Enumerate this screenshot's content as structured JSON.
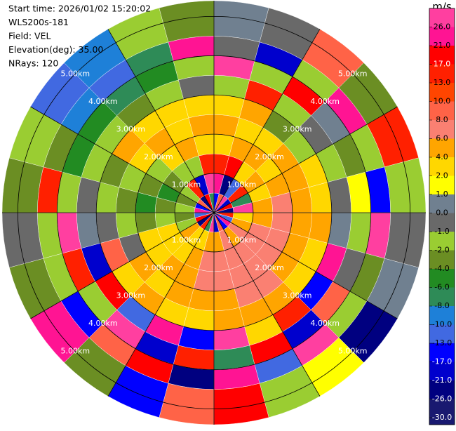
{
  "chart_data": {
    "type": "ppi",
    "info": [
      "Start time: 2026/01/02 15:20:02",
      "WLS200s-181",
      "Field: VEL",
      "Elevation(deg): 35.00",
      "NRays: 120"
    ],
    "colorbar_title": "m/s",
    "colorbar_ticks": [
      {
        "value": -30,
        "label": "-30.0"
      },
      {
        "value": -26,
        "label": "-26.0"
      },
      {
        "value": -21,
        "label": "-21.0"
      },
      {
        "value": -17,
        "label": "-17.0"
      },
      {
        "value": -13,
        "label": "-13.0"
      },
      {
        "value": -10,
        "label": "-10.0"
      },
      {
        "value": -8,
        "label": "-8.0"
      },
      {
        "value": -6,
        "label": "-6.0"
      },
      {
        "value": -4,
        "label": "-4.0"
      },
      {
        "value": -2,
        "label": "-2.0"
      },
      {
        "value": -1,
        "label": "-1.0"
      },
      {
        "value": 0,
        "label": "0.0"
      },
      {
        "value": 1,
        "label": "1.0"
      },
      {
        "value": 2,
        "label": "2.0"
      },
      {
        "value": 4,
        "label": "4.0"
      },
      {
        "value": 6,
        "label": "6.0"
      },
      {
        "value": 8,
        "label": "8.0"
      },
      {
        "value": 10,
        "label": "10.0"
      },
      {
        "value": 13,
        "label": "13.0"
      },
      {
        "value": 17,
        "label": "17.0"
      },
      {
        "value": 21,
        "label": "21.0"
      },
      {
        "value": 26,
        "label": "26.0"
      }
    ],
    "colors": [
      "#191970",
      "#000080",
      "#0000cd",
      "#0000ff",
      "#4169e1",
      "#1e80d8",
      "#2e8b57",
      "#228b22",
      "#6b8e23",
      "#9acd32",
      "#696969",
      "#708090",
      "#ffff00",
      "#ffd700",
      "#ffa500",
      "#fa8072",
      "#ff6347",
      "#ff4500",
      "#ff2000",
      "#ff0000",
      "#ff1493",
      "#ff3fa0"
    ],
    "rlim": [
      0,
      5.4
    ],
    "rticks": [
      {
        "value": 1,
        "label": "1.00km"
      },
      {
        "value": 2,
        "label": "2.00km"
      },
      {
        "value": 3,
        "label": "3.00km"
      },
      {
        "value": 4,
        "label": "4.00km"
      },
      {
        "value": 5,
        "label": "5.00km"
      }
    ],
    "azimuths": [
      0,
      15,
      30,
      45,
      60,
      75,
      90,
      105,
      120,
      135,
      150,
      165,
      180,
      195,
      210,
      225,
      240,
      255,
      270,
      285,
      300,
      315,
      330,
      345
    ],
    "ranges": [
      0,
      0.5,
      1,
      1.5,
      2,
      2.5,
      3,
      3.5,
      4,
      4.5
    ],
    "values": [
      [
        -17,
        21,
        13,
        2,
        4,
        2,
        -2,
        26,
        -1,
        0
      ],
      [
        8,
        -26,
        17,
        4,
        2,
        4,
        13,
        -2,
        -21,
        -1
      ],
      [
        26,
        -13,
        2,
        4,
        2,
        -4,
        -2,
        17,
        -2,
        8
      ],
      [
        -21,
        13,
        4,
        2,
        4,
        -2,
        -1,
        0,
        21,
        -4
      ],
      [
        17,
        -8,
        2,
        4,
        4,
        2,
        -2,
        -4,
        -2,
        13
      ],
      [
        -26,
        26,
        4,
        6,
        4,
        2,
        -1,
        1,
        -17,
        -2
      ],
      [
        13,
        2,
        4,
        6,
        4,
        4,
        0,
        -2,
        26,
        -1
      ],
      [
        -13,
        4,
        6,
        6,
        4,
        2,
        21,
        -1,
        -4,
        0
      ],
      [
        21,
        6,
        6,
        6,
        4,
        2,
        -17,
        8,
        -2,
        -26
      ],
      [
        -17,
        4,
        6,
        6,
        6,
        4,
        13,
        -21,
        26,
        1
      ],
      [
        8,
        6,
        6,
        6,
        6,
        4,
        2,
        17,
        -13,
        -2
      ],
      [
        -21,
        4,
        6,
        6,
        4,
        4,
        26,
        -8,
        21,
        17
      ],
      [
        26,
        4,
        6,
        6,
        4,
        2,
        -17,
        13,
        -26,
        8
      ],
      [
        -8,
        2,
        4,
        4,
        4,
        2,
        21,
        -21,
        17,
        -17
      ],
      [
        13,
        2,
        2,
        4,
        2,
        4,
        -13,
        26,
        8,
        -4
      ],
      [
        -26,
        4,
        2,
        2,
        4,
        2,
        17,
        -2,
        -17,
        21
      ],
      [
        17,
        -2,
        2,
        2,
        -1,
        8,
        -21,
        13,
        -2,
        -4
      ],
      [
        -13,
        -4,
        -2,
        -4,
        -2,
        -1,
        0,
        26,
        -2,
        -1
      ],
      [
        21,
        -2,
        -4,
        -6,
        -4,
        -2,
        -1,
        -2,
        13,
        -4
      ],
      [
        -17,
        -4,
        -6,
        -4,
        -2,
        -4,
        -2,
        -6,
        -4,
        -2
      ],
      [
        8,
        -2,
        -4,
        -2,
        2,
        4,
        -2,
        -6,
        -10,
        -13
      ],
      [
        -26,
        13,
        -2,
        2,
        4,
        2,
        -4,
        -8,
        -13,
        -10
      ],
      [
        17,
        -21,
        -2,
        4,
        2,
        2,
        -2,
        -6,
        -8,
        -2
      ],
      [
        -8,
        26,
        13,
        2,
        4,
        2,
        -1,
        -2,
        21,
        -4
      ]
    ]
  }
}
